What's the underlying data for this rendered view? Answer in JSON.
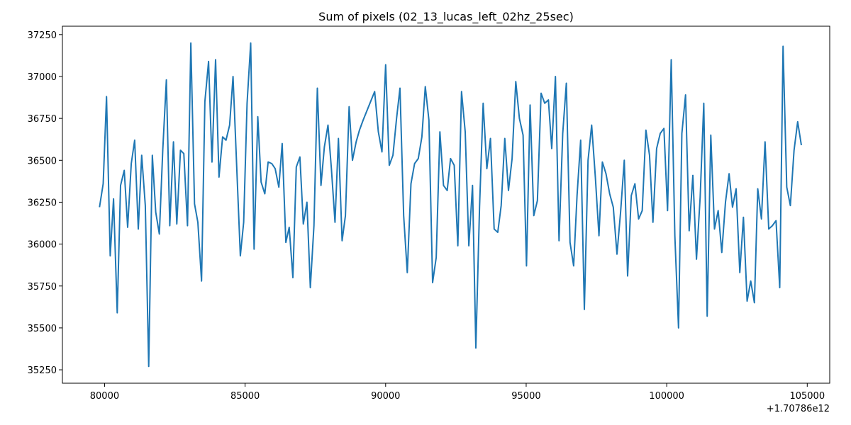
{
  "chart_data": {
    "type": "line",
    "title": "Sum of pixels (02_13_lucas_left_02hz_25sec)",
    "xlabel": "",
    "ylabel": "",
    "x_offset_label": "+1.70786e12",
    "xlim": [
      78500,
      105800
    ],
    "ylim": [
      35170,
      37300
    ],
    "xticks": [
      80000,
      85000,
      90000,
      95000,
      100000,
      105000
    ],
    "yticks": [
      35250,
      35500,
      35750,
      36000,
      36250,
      36500,
      36750,
      37000,
      37250
    ],
    "grid": false,
    "color": "#1f77b4",
    "series": [
      {
        "x": [
          79820,
          79950,
          80070,
          80200,
          80320,
          80450,
          80570,
          80700,
          80820,
          80950,
          81070,
          81200,
          81320,
          81450,
          81570,
          81700,
          81820,
          81950,
          82070,
          82200,
          82320,
          82450,
          82570,
          82700,
          82820,
          82950,
          83070,
          83200,
          83320,
          83450,
          83570,
          83700,
          83820,
          83950,
          84070,
          84200,
          84320,
          84450,
          84570,
          84830,
          84950,
          85070,
          85200,
          85320,
          85450,
          85570,
          85700,
          85820,
          85950,
          86070,
          86200,
          86320,
          86450,
          86570,
          86700,
          86820,
          86950,
          87070,
          87200,
          87320,
          87450,
          87570,
          87700,
          87820,
          87950,
          88070,
          88200,
          88320,
          88450,
          88570,
          88700,
          88820,
          88950,
          89070,
          89200,
          89610,
          89740,
          89870,
          90000,
          90130,
          90260,
          90390,
          90510,
          90640,
          90770,
          90900,
          91030,
          91160,
          91290,
          91410,
          91540,
          91670,
          91800,
          91930,
          92060,
          92190,
          92310,
          92440,
          92570,
          92700,
          92830,
          92960,
          93090,
          93210,
          93340,
          93470,
          93600,
          93730,
          93860,
          93990,
          94110,
          94240,
          94370,
          94500,
          94630,
          94760,
          94890,
          95010,
          95140,
          95270,
          95400,
          95530,
          95660,
          95790,
          95910,
          96040,
          96170,
          96300,
          96430,
          96560,
          96690,
          96810,
          96940,
          97070,
          97200,
          97330,
          97460,
          97590,
          97710,
          97840,
          97970,
          98100,
          98230,
          98360,
          98490,
          98610,
          98740,
          98870,
          99000,
          99130,
          99260,
          99390,
          99510,
          99640,
          99770,
          99900,
          100030,
          100160,
          100290,
          100420,
          100540,
          100670,
          100800,
          100930,
          101060,
          101190,
          101320,
          101440,
          101570,
          101700,
          101830,
          101960,
          102090,
          102220,
          102340,
          102470,
          102600,
          102730,
          102860,
          102990,
          103120,
          103240,
          103370,
          103500,
          103630,
          103760,
          103890,
          104020,
          104140,
          104270,
          104400,
          104530,
          104660,
          104790
        ],
        "y": [
          36220,
          36360,
          36880,
          35930,
          36270,
          35590,
          36350,
          36440,
          36100,
          36480,
          36620,
          36090,
          36530,
          36230,
          35270,
          36530,
          36190,
          36060,
          36560,
          36980,
          36110,
          36610,
          36120,
          36560,
          36540,
          36110,
          37200,
          36240,
          36130,
          35780,
          36850,
          37090,
          36490,
          37100,
          36400,
          36640,
          36620,
          36710,
          37000,
          35930,
          36130,
          36840,
          37200,
          35970,
          36760,
          36370,
          36300,
          36490,
          36480,
          36450,
          36340,
          36600,
          36010,
          36100,
          35800,
          36460,
          36520,
          36120,
          36250,
          35740,
          36110,
          36930,
          36350,
          36580,
          36710,
          36450,
          36130,
          36630,
          36020,
          36170,
          36820,
          36500,
          36610,
          36680,
          36740,
          36910,
          36670,
          36550,
          37070,
          36470,
          36530,
          36750,
          36930,
          36170,
          35830,
          36360,
          36480,
          36510,
          36640,
          36940,
          36740,
          35770,
          35920,
          36670,
          36350,
          36320,
          36510,
          36470,
          35990,
          36910,
          36670,
          35990,
          36350,
          35380,
          36220,
          36840,
          36450,
          36630,
          36090,
          36070,
          36230,
          36630,
          36320,
          36510,
          36970,
          36750,
          36650,
          35870,
          36830,
          36170,
          36260,
          36900,
          36840,
          36860,
          36570,
          37000,
          36020,
          36660,
          36960,
          36010,
          35870,
          36290,
          36620,
          35610,
          36500,
          36710,
          36400,
          36050,
          36490,
          36420,
          36300,
          36220,
          35940,
          36190,
          36500,
          35810,
          36290,
          36360,
          36150,
          36200,
          36680,
          36530,
          36130,
          36570,
          36660,
          36690,
          36200,
          37100,
          36050,
          35500,
          36660,
          36890,
          36080,
          36410,
          35910,
          36280,
          36840,
          35570,
          36650,
          36090,
          36200,
          35950,
          36250,
          36420,
          36220,
          36330,
          35830,
          36160,
          35660,
          35780,
          35650,
          36330,
          36150,
          36610,
          36090,
          36110,
          36140,
          35740,
          37180,
          36340,
          36230,
          36560,
          36730,
          36590
        ]
      }
    ]
  }
}
